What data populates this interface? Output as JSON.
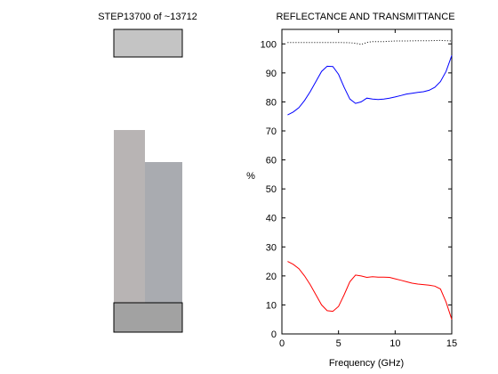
{
  "left_panel": {
    "title": "STEP13700 of ~13712",
    "colors": {
      "top_block": "#c4c4c4",
      "mid_left": "#b8b4b4",
      "mid_right": "#a9abb0",
      "bottom_block": "#a2a2a2",
      "outline": "#000000"
    }
  },
  "chart_data": {
    "type": "line",
    "title": "REFLECTANCE AND TRANSMITTANCE",
    "xlabel": "Frequency (GHz)",
    "ylabel": "%",
    "xlim": [
      0,
      15
    ],
    "ylim": [
      0,
      105
    ],
    "xticks": [
      0,
      5,
      10,
      15
    ],
    "yticks": [
      0,
      10,
      20,
      30,
      40,
      50,
      60,
      70,
      80,
      90,
      100
    ],
    "grid": false,
    "series": [
      {
        "color": "#0000ff",
        "style": "solid",
        "x": [
          0.5,
          1,
          1.5,
          2,
          2.5,
          3,
          3.5,
          4,
          4.5,
          5,
          5.5,
          6,
          6.5,
          7,
          7.5,
          8,
          8.5,
          9,
          9.5,
          10,
          10.5,
          11,
          11.5,
          12,
          12.5,
          13,
          13.5,
          14,
          14.5,
          15
        ],
        "y": [
          75.5,
          76.5,
          78,
          80.5,
          83.5,
          87,
          90.5,
          92.3,
          92.2,
          89.5,
          85,
          81,
          79.5,
          80,
          81.3,
          81,
          80.8,
          81,
          81.3,
          81.7,
          82.2,
          82.7,
          83,
          83.3,
          83.5,
          84,
          85,
          87,
          90.5,
          96
        ]
      },
      {
        "color": "#ff0000",
        "style": "solid",
        "x": [
          0.5,
          1,
          1.5,
          2,
          2.5,
          3,
          3.5,
          4,
          4.5,
          5,
          5.5,
          6,
          6.5,
          7,
          7.5,
          8,
          8.5,
          9,
          9.5,
          10,
          10.5,
          11,
          11.5,
          12,
          12.5,
          13,
          13.5,
          14,
          14.5,
          15
        ],
        "y": [
          25,
          24,
          22.5,
          20,
          17,
          13.5,
          10,
          8,
          7.8,
          9.5,
          13.5,
          18,
          20.3,
          20,
          19.5,
          19.7,
          19.6,
          19.6,
          19.5,
          19,
          18.5,
          18,
          17.5,
          17.2,
          17,
          16.8,
          16.5,
          15.5,
          11,
          5
        ]
      },
      {
        "color": "#000000",
        "style": "dotted",
        "x": [
          0.5,
          1,
          2,
          3,
          4,
          5,
          6,
          6.5,
          7,
          7.5,
          8,
          9,
          10,
          11,
          12,
          13,
          14,
          15
        ],
        "y": [
          100.5,
          100.5,
          100.5,
          100.5,
          100.5,
          100.5,
          100.4,
          100.2,
          99.8,
          100.5,
          100.8,
          100.8,
          101,
          101,
          101.1,
          101.1,
          101.2,
          101
        ]
      }
    ]
  }
}
